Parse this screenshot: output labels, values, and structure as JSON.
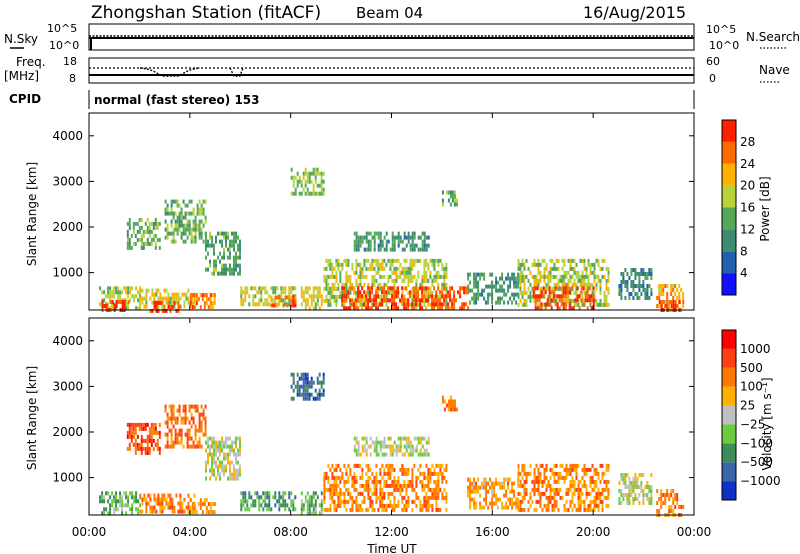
{
  "header": {
    "station": "Zhongshan Station (fitACF)",
    "beam": "Beam 04",
    "date": "16/Aug/2015"
  },
  "status_panels": {
    "nsky_label": "N.Sky",
    "nsky_ticks": [
      "10^5",
      "10^0"
    ],
    "nsearch_label": "N.Search",
    "nsearch_ticks": [
      "10^5",
      "10^0"
    ],
    "freq_label": "Freq.",
    "freq_unit": "[MHz]",
    "freq_ticks": [
      "18",
      "8"
    ],
    "nave_label": "Nave",
    "nave_ticks": [
      "60",
      "0"
    ],
    "cpid_label": "CPID",
    "cpid_text": "normal (fast stereo) 153"
  },
  "chart_data": [
    {
      "type": "heatmap",
      "parameter": "Power",
      "ylabel": "Slant Range [km]",
      "ylim": [
        180,
        4500
      ],
      "yticks": [
        "1000",
        "2000",
        "3000",
        "4000"
      ],
      "xlim": [
        0,
        24
      ],
      "colorbar": {
        "label": "Power [dB]",
        "range": [
          0,
          32
        ],
        "ticks": [
          "4",
          "8",
          "12",
          "16",
          "20",
          "24",
          "28"
        ],
        "colors": [
          "#1010ff",
          "#2060b0",
          "#3d8c72",
          "#55a85a",
          "#b8d23a",
          "#ffb000",
          "#ff6a00",
          "#ff2000"
        ]
      },
      "regions": [
        {
          "t": [
            0.4,
            2.0
          ],
          "r": [
            200,
            700
          ],
          "level": 0.55
        },
        {
          "t": [
            0.5,
            1.6
          ],
          "r": [
            180,
            400
          ],
          "level": 0.9
        },
        {
          "t": [
            2.0,
            4.2
          ],
          "r": [
            250,
            650
          ],
          "level": 0.6
        },
        {
          "t": [
            2.4,
            3.6
          ],
          "r": [
            200,
            380
          ],
          "level": 0.9
        },
        {
          "t": [
            1.5,
            2.8
          ],
          "r": [
            1500,
            2200
          ],
          "level": 0.45
        },
        {
          "t": [
            3.0,
            4.6
          ],
          "r": [
            1700,
            2600
          ],
          "level": 0.45
        },
        {
          "t": [
            4.6,
            6.0
          ],
          "r": [
            1000,
            1900
          ],
          "level": 0.4
        },
        {
          "t": [
            4.0,
            5.0
          ],
          "r": [
            200,
            550
          ],
          "level": 0.8
        },
        {
          "t": [
            6.0,
            8.2
          ],
          "r": [
            300,
            700
          ],
          "level": 0.55
        },
        {
          "t": [
            7.2,
            8.2
          ],
          "r": [
            250,
            500
          ],
          "level": 0.8
        },
        {
          "t": [
            8.0,
            9.3
          ],
          "r": [
            2700,
            3300
          ],
          "level": 0.5
        },
        {
          "t": [
            8.4,
            9.2
          ],
          "r": [
            200,
            700
          ],
          "level": 0.6
        },
        {
          "t": [
            9.3,
            14.2
          ],
          "r": [
            300,
            1300
          ],
          "level": 0.55
        },
        {
          "t": [
            10.0,
            15.0
          ],
          "r": [
            200,
            700
          ],
          "level": 0.85
        },
        {
          "t": [
            10.5,
            13.5
          ],
          "r": [
            1500,
            1900
          ],
          "level": 0.35
        },
        {
          "t": [
            14.0,
            14.6
          ],
          "r": [
            2500,
            2800
          ],
          "level": 0.4
        },
        {
          "t": [
            15.0,
            17.0
          ],
          "r": [
            300,
            1000
          ],
          "level": 0.35
        },
        {
          "t": [
            17.0,
            20.6
          ],
          "r": [
            300,
            1300
          ],
          "level": 0.55
        },
        {
          "t": [
            17.6,
            20.0
          ],
          "r": [
            200,
            700
          ],
          "level": 0.9
        },
        {
          "t": [
            21.0,
            22.3
          ],
          "r": [
            400,
            1100
          ],
          "level": 0.3
        },
        {
          "t": [
            22.5,
            23.6
          ],
          "r": [
            200,
            750
          ],
          "level": 0.7
        },
        {
          "t": [
            22.6,
            23.4
          ],
          "r": [
            180,
            400
          ],
          "level": 0.92
        }
      ]
    },
    {
      "type": "heatmap",
      "parameter": "Velocity",
      "ylabel": "Slant Range [km]",
      "ylim": [
        180,
        4500
      ],
      "yticks": [
        "1000",
        "2000",
        "3000",
        "4000"
      ],
      "xlabel": "Time UT",
      "xlim": [
        0,
        24
      ],
      "xticks": [
        "00:00",
        "04:00",
        "08:00",
        "12:00",
        "16:00",
        "20:00",
        "00:00"
      ],
      "colorbar": {
        "label": "Velocity [m s⁻¹]",
        "range": [
          -1200,
          1200
        ],
        "ticks": [
          "1000",
          "500",
          "100",
          "25",
          "−25",
          "−100",
          "−500",
          "−1000"
        ],
        "colors": [
          "#1030c8",
          "#3c64a8",
          "#3d8c5a",
          "#6ccc40",
          "#c0c0c0",
          "#ffb000",
          "#ff7800",
          "#ff4010",
          "#ff0000"
        ]
      },
      "regions": [
        {
          "t": [
            0.4,
            2.0
          ],
          "r": [
            200,
            700
          ],
          "level": 0.35
        },
        {
          "t": [
            2.0,
            4.2
          ],
          "r": [
            250,
            650
          ],
          "level": 0.7
        },
        {
          "t": [
            1.5,
            2.8
          ],
          "r": [
            1500,
            2200
          ],
          "level": 0.82
        },
        {
          "t": [
            3.0,
            4.6
          ],
          "r": [
            1700,
            2600
          ],
          "level": 0.75
        },
        {
          "t": [
            4.6,
            6.0
          ],
          "r": [
            1000,
            1900
          ],
          "level": 0.5
        },
        {
          "t": [
            4.0,
            5.0
          ],
          "r": [
            200,
            550
          ],
          "level": 0.68
        },
        {
          "t": [
            6.0,
            8.2
          ],
          "r": [
            300,
            700
          ],
          "level": 0.3
        },
        {
          "t": [
            8.0,
            9.3
          ],
          "r": [
            2700,
            3300
          ],
          "level": 0.2
        },
        {
          "t": [
            8.4,
            9.2
          ],
          "r": [
            200,
            700
          ],
          "level": 0.35
        },
        {
          "t": [
            9.3,
            14.2
          ],
          "r": [
            300,
            1300
          ],
          "level": 0.7
        },
        {
          "t": [
            10.5,
            13.5
          ],
          "r": [
            1500,
            1900
          ],
          "level": 0.48
        },
        {
          "t": [
            14.0,
            14.6
          ],
          "r": [
            2500,
            2800
          ],
          "level": 0.72
        },
        {
          "t": [
            15.0,
            17.0
          ],
          "r": [
            300,
            1000
          ],
          "level": 0.66
        },
        {
          "t": [
            17.0,
            20.6
          ],
          "r": [
            300,
            1300
          ],
          "level": 0.7
        },
        {
          "t": [
            21.0,
            22.3
          ],
          "r": [
            400,
            1100
          ],
          "level": 0.5
        },
        {
          "t": [
            22.5,
            23.6
          ],
          "r": [
            200,
            750
          ],
          "level": 0.68
        }
      ]
    }
  ]
}
